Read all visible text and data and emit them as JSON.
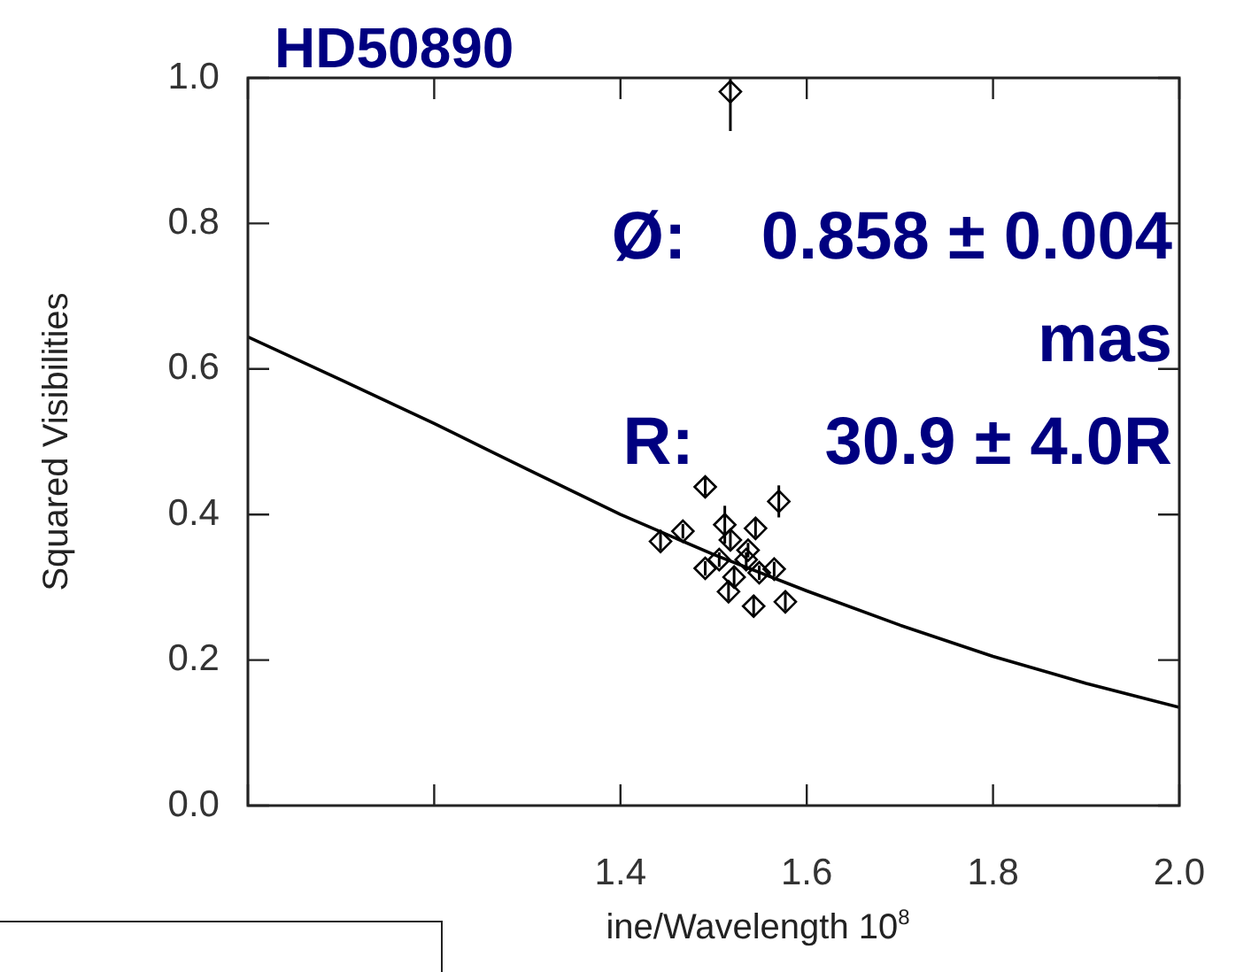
{
  "chart_data": {
    "type": "scatter",
    "title": "HD50890",
    "xlabel": "ine/Wavelength 10$^{8}$",
    "ylabel": "Squared Visibilities",
    "xlim": [
      1.0,
      2.0
    ],
    "ylim": [
      0,
      1.0
    ],
    "xticks": [
      {
        "value": 1.0,
        "label": null
      },
      {
        "value": 1.2,
        "label": null
      },
      1.4,
      1.6,
      1.8,
      {
        "value": 2.0,
        "label": "2.0"
      }
    ],
    "yticks": [
      {
        "value": 0,
        "label": "0.0"
      },
      0.2,
      0.4,
      0.6,
      0.8,
      {
        "value": 1.0,
        "label": "1.0"
      }
    ],
    "marker": "diamond",
    "annotations": [
      "Ø:    0.858 ± 0.004",
      "mas",
      "R:       30.9 ± 4.0R"
    ],
    "series": [
      {
        "type": "scatter",
        "color": "#000000",
        "x": [
          1.518,
          1.443,
          1.467,
          1.491,
          1.512,
          1.518,
          1.545,
          1.57,
          1.506,
          1.491,
          1.537,
          1.535,
          1.549,
          1.565,
          1.522,
          1.516,
          1.543,
          1.577
        ],
        "values": [
          0.981,
          0.363,
          0.377,
          0.438,
          0.386,
          0.365,
          0.381,
          0.418,
          0.338,
          0.326,
          0.351,
          0.338,
          0.32,
          0.325,
          0.314,
          0.294,
          0.274,
          0.28
        ],
        "errors": [
          [
            0.927,
            1.0
          ],
          0.012,
          0.01,
          0.012,
          0.026,
          0.012,
          0.012,
          0.022,
          0.01,
          0.01,
          0.01,
          0.01,
          0.01,
          0.01,
          0.012,
          0.012,
          0.015,
          0.012
        ]
      },
      {
        "type": "line",
        "color": "#000000",
        "marker": "none",
        "x": [
          1.0,
          1.1,
          1.2,
          1.3,
          1.4,
          1.5,
          1.6,
          1.7,
          1.8,
          1.9,
          2.0
        ],
        "values": [
          0.644,
          0.585,
          0.525,
          0.462,
          0.4,
          0.345,
          0.295,
          0.248,
          0.205,
          0.168,
          0.135
        ]
      }
    ]
  }
}
